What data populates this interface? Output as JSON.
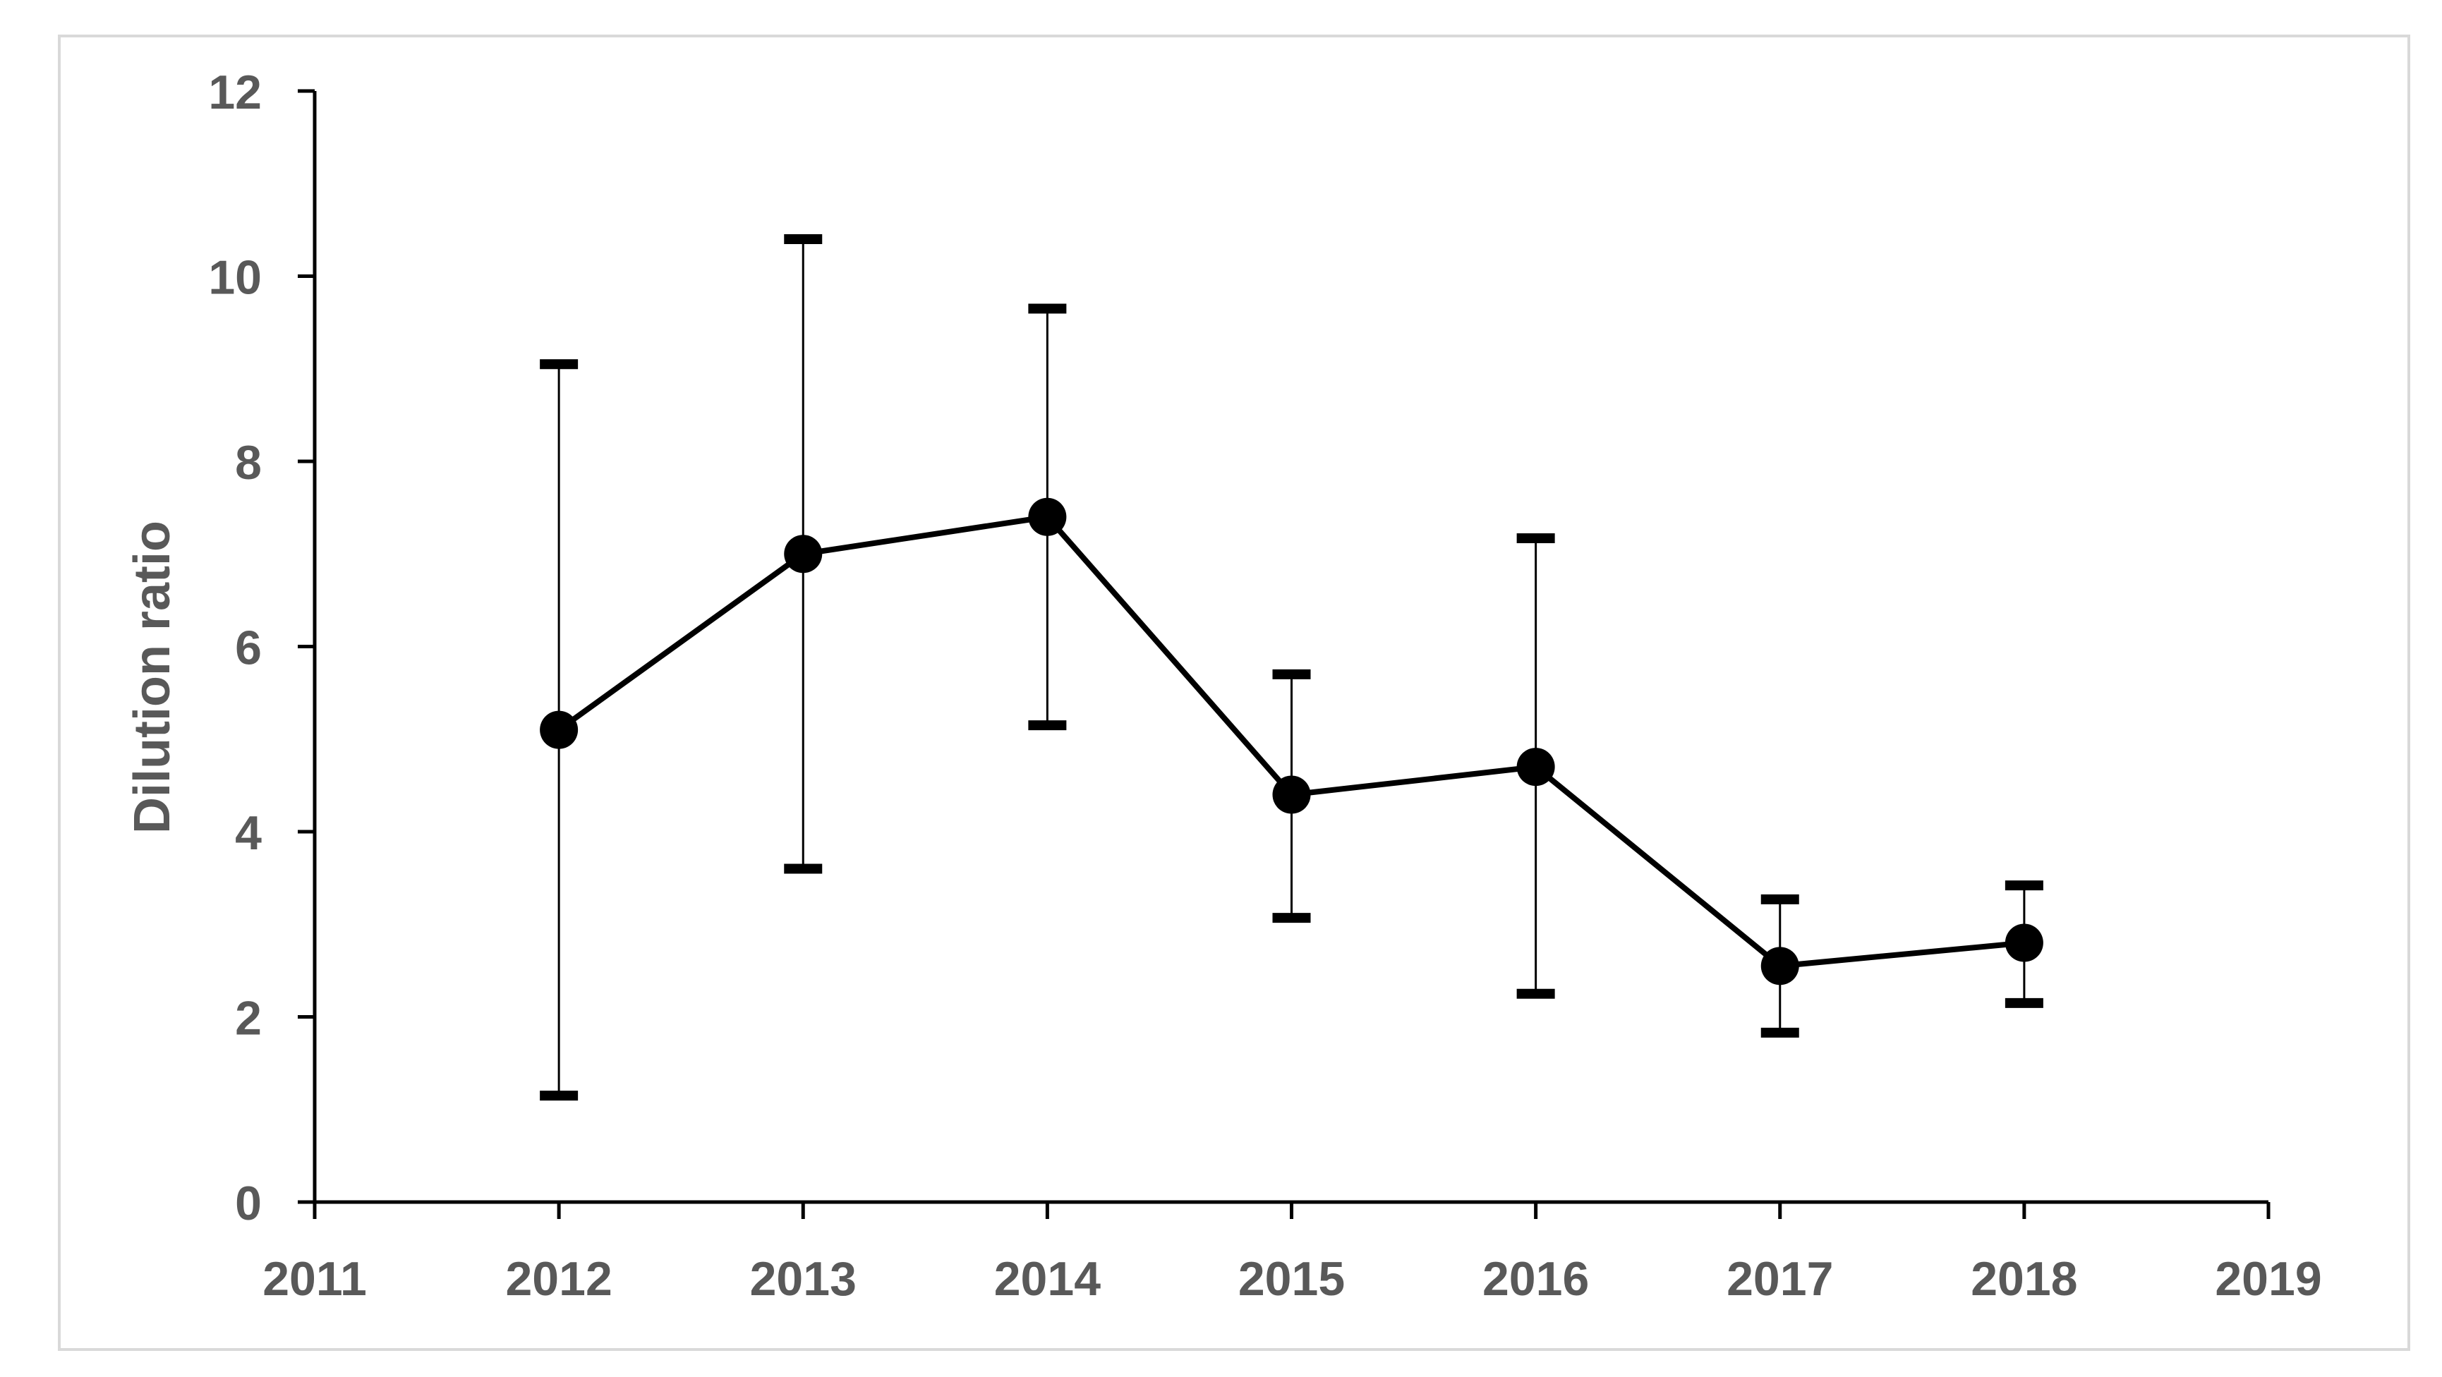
{
  "chart_data": {
    "type": "line",
    "title": "",
    "xlabel": "",
    "ylabel": "Dilution ratio",
    "xlim": [
      2011,
      2019
    ],
    "ylim": [
      0,
      12
    ],
    "xticks": [
      2011,
      2012,
      2013,
      2014,
      2015,
      2016,
      2017,
      2018,
      2019
    ],
    "xtick_labels": [
      "2011",
      "2012",
      "2013",
      "2014",
      "2015",
      "2016",
      "2017",
      "2018",
      "2019"
    ],
    "yticks": [
      0,
      2,
      4,
      6,
      8,
      10,
      12
    ],
    "ytick_labels": [
      "0",
      "2",
      "4",
      "6",
      "8",
      "10",
      "12"
    ],
    "grid": false,
    "legend": "none",
    "series": [
      {
        "x": [
          2012,
          2013,
          2014,
          2015,
          2016,
          2017,
          2018
        ],
        "y": [
          5.1,
          7.0,
          7.4,
          4.4,
          4.7,
          2.55,
          2.8
        ],
        "error_upper": [
          9.05,
          10.4,
          9.65,
          5.7,
          7.17,
          3.27,
          3.42
        ],
        "error_lower": [
          1.15,
          3.6,
          5.15,
          3.07,
          2.25,
          1.83,
          2.15
        ],
        "color": "#000000",
        "marker": "circle"
      }
    ],
    "colors": {
      "axis": "#000000",
      "tick_label": "#595959",
      "axis_label": "#595959",
      "frame": "#d9d9d9"
    }
  }
}
